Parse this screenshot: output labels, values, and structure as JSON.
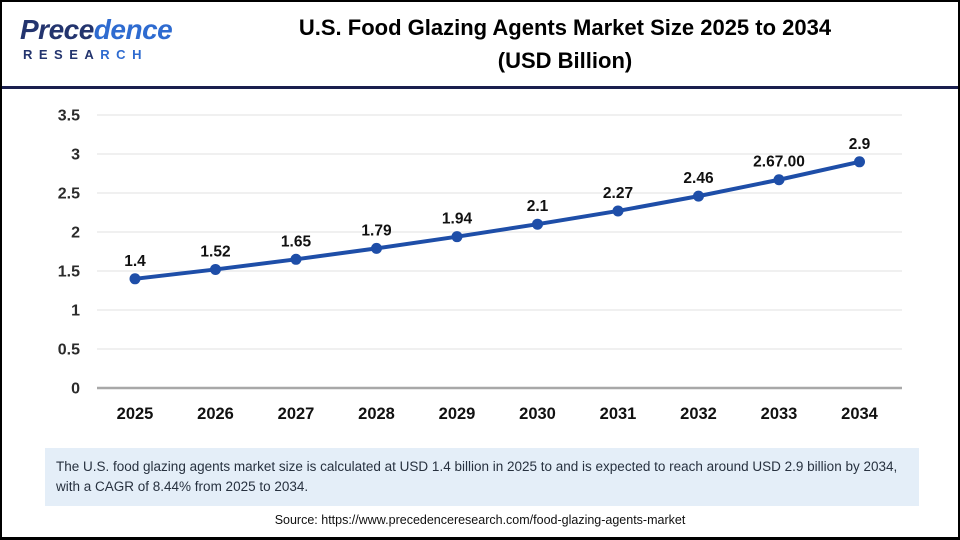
{
  "header": {
    "logo": {
      "word_part1": "Prece",
      "word_part2": "dence",
      "sub_part1": "RESEA",
      "sub_part2": "RCH"
    },
    "title_line1": "U.S. Food Glazing Agents Market Size 2025 to 2034",
    "title_line2": "(USD Billion)"
  },
  "chart_data": {
    "type": "line",
    "title": "U.S. Food Glazing Agents Market Size 2025 to 2034 (USD Billion)",
    "categories": [
      "2025",
      "2026",
      "2027",
      "2028",
      "2029",
      "2030",
      "2031",
      "2032",
      "2033",
      "2034"
    ],
    "series": [
      {
        "name": "U.S. Food Glazing Agents Market Size (USD Billion)",
        "values": [
          1.4,
          1.52,
          1.65,
          1.79,
          1.94,
          2.1,
          2.27,
          2.46,
          2.67,
          2.9
        ],
        "point_labels": [
          "1.4",
          "1.52",
          "1.65",
          "1.79",
          "1.94",
          "2.1",
          "2.27",
          "2.46",
          "2.67.00",
          "2.9"
        ]
      }
    ],
    "xlabel": "",
    "ylabel": "",
    "ylim": [
      0,
      3.5
    ],
    "y_ticks": [
      0,
      0.5,
      1,
      1.5,
      2,
      2.5,
      3,
      3.5
    ],
    "y_tick_labels": [
      "0",
      "0.5",
      "1",
      "1.5",
      "2",
      "2.5",
      "3",
      "3.5"
    ],
    "grid": true,
    "legend_position": "none"
  },
  "colors": {
    "line": "#1e4ea8",
    "marker": "#1e4ea8",
    "gridline": "#e7e7e7",
    "zero_axis": "#a8a8a8",
    "tick_text": "#2b2b2b",
    "point_label_text": "#111111",
    "header_divider": "#1a1f4e",
    "note_bg": "#e4eef8",
    "logo_navy": "#23346e",
    "logo_blue": "#2e6bd0"
  },
  "footer": {
    "note": "The U.S. food glazing agents market size is calculated at USD 1.4 billion in 2025 to and is expected to reach around USD 2.9 billion by 2034, with a CAGR of 8.44% from 2025 to 2034.",
    "source": "Source: https://www.precedenceresearch.com/food-glazing-agents-market"
  }
}
